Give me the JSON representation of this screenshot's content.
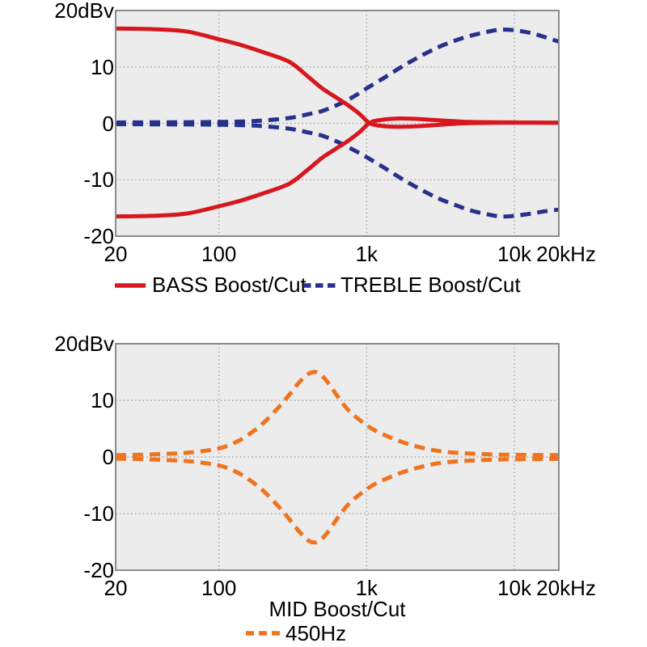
{
  "colors": {
    "red": "#d8161e",
    "navy": "#27308a",
    "orange": "#ee7420",
    "plot_bg": "#ececec",
    "grid": "#999999",
    "border": "#8c8c8c",
    "text": "#000000"
  },
  "chart_data": [
    {
      "type": "line",
      "title": "",
      "xscale": "log",
      "x_range": [
        20,
        20000
      ],
      "y_range": [
        -20,
        20
      ],
      "grid_x": [
        100,
        1000,
        10000
      ],
      "grid_y": [
        10,
        0,
        -10
      ],
      "x_ticks": [
        {
          "f": 20,
          "label": "20"
        },
        {
          "f": 100,
          "label": "100"
        },
        {
          "f": 1000,
          "label": "1k"
        },
        {
          "f": 10000,
          "label": "10k"
        },
        {
          "f": 20000,
          "label": "20kHz"
        }
      ],
      "y_ticks": [
        {
          "v": 20,
          "label": "20dBv"
        },
        {
          "v": 10,
          "label": "10"
        },
        {
          "v": 0,
          "label": "0"
        },
        {
          "v": -10,
          "label": "-10"
        },
        {
          "v": -20,
          "label": "-20"
        }
      ],
      "xlabel": "",
      "legend": [
        {
          "label": "BASS Boost/Cut",
          "color": "red",
          "style": "solid"
        },
        {
          "label": "TREBLE Boost/Cut",
          "color": "navy",
          "style": "dashed"
        }
      ],
      "series": [
        {
          "name": "TREBLE boost",
          "color": "navy",
          "style": "dashed",
          "points": [
            [
              20,
              0.15
            ],
            [
              60,
              0.2
            ],
            [
              100,
              0.25
            ],
            [
              150,
              0.35
            ],
            [
              200,
              0.5
            ],
            [
              300,
              0.95
            ],
            [
              400,
              1.6
            ],
            [
              500,
              2.2
            ],
            [
              650,
              3.4
            ],
            [
              800,
              4.6
            ],
            [
              1000,
              6.2
            ],
            [
              1300,
              8.0
            ],
            [
              1700,
              9.9
            ],
            [
              2200,
              11.6
            ],
            [
              3000,
              13.4
            ],
            [
              4000,
              14.7
            ],
            [
              5000,
              15.5
            ],
            [
              6500,
              16.2
            ],
            [
              8000,
              16.6
            ],
            [
              10000,
              16.5
            ],
            [
              13000,
              16.0
            ],
            [
              16000,
              15.3
            ],
            [
              20000,
              14.5
            ]
          ]
        },
        {
          "name": "TREBLE cut",
          "color": "navy",
          "style": "dashed",
          "points": [
            [
              20,
              -0.15
            ],
            [
              60,
              -0.2
            ],
            [
              100,
              -0.25
            ],
            [
              150,
              -0.35
            ],
            [
              200,
              -0.5
            ],
            [
              300,
              -0.95
            ],
            [
              400,
              -1.6
            ],
            [
              500,
              -2.2
            ],
            [
              650,
              -3.4
            ],
            [
              800,
              -4.6
            ],
            [
              1000,
              -6.0
            ],
            [
              1300,
              -7.8
            ],
            [
              1700,
              -9.7
            ],
            [
              2200,
              -11.4
            ],
            [
              3000,
              -13.2
            ],
            [
              4000,
              -14.5
            ],
            [
              5000,
              -15.4
            ],
            [
              6500,
              -16.1
            ],
            [
              8000,
              -16.5
            ],
            [
              10000,
              -16.4
            ],
            [
              13000,
              -16.0
            ],
            [
              16000,
              -15.6
            ],
            [
              20000,
              -15.3
            ]
          ]
        },
        {
          "name": "BASS boost",
          "color": "red",
          "style": "solid",
          "points": [
            [
              20,
              16.8
            ],
            [
              35,
              16.7
            ],
            [
              60,
              16.3
            ],
            [
              100,
              14.9
            ],
            [
              140,
              13.9
            ],
            [
              200,
              12.6
            ],
            [
              300,
              10.9
            ],
            [
              400,
              8.3
            ],
            [
              500,
              6.2
            ],
            [
              620,
              4.6
            ],
            [
              750,
              3.2
            ],
            [
              900,
              1.6
            ],
            [
              1050,
              0.0
            ],
            [
              1250,
              -0.45
            ],
            [
              1600,
              -0.6
            ],
            [
              2100,
              -0.55
            ],
            [
              2800,
              -0.35
            ],
            [
              3800,
              -0.1
            ],
            [
              5000,
              0.05
            ],
            [
              8000,
              0.1
            ],
            [
              13000,
              0.1
            ],
            [
              20000,
              0.1
            ]
          ]
        },
        {
          "name": "BASS cut",
          "color": "red",
          "style": "solid",
          "points": [
            [
              20,
              -16.5
            ],
            [
              35,
              -16.4
            ],
            [
              60,
              -16.0
            ],
            [
              100,
              -14.7
            ],
            [
              140,
              -13.7
            ],
            [
              200,
              -12.4
            ],
            [
              300,
              -10.7
            ],
            [
              400,
              -8.2
            ],
            [
              500,
              -6.1
            ],
            [
              620,
              -4.5
            ],
            [
              750,
              -3.1
            ],
            [
              900,
              -1.5
            ],
            [
              1050,
              0.1
            ],
            [
              1250,
              0.6
            ],
            [
              1600,
              0.85
            ],
            [
              2100,
              0.8
            ],
            [
              2800,
              0.6
            ],
            [
              3800,
              0.4
            ],
            [
              5000,
              0.25
            ],
            [
              8000,
              0.18
            ],
            [
              13000,
              0.15
            ],
            [
              20000,
              0.12
            ]
          ]
        }
      ]
    },
    {
      "type": "line",
      "title": "",
      "xscale": "log",
      "x_range": [
        20,
        20000
      ],
      "y_range": [
        -20,
        20
      ],
      "grid_x": [
        100,
        1000,
        10000
      ],
      "grid_y": [
        10,
        0,
        -10
      ],
      "x_ticks": [
        {
          "f": 20,
          "label": "20"
        },
        {
          "f": 100,
          "label": "100"
        },
        {
          "f": 1000,
          "label": "1k"
        },
        {
          "f": 10000,
          "label": "10k"
        },
        {
          "f": 20000,
          "label": "20kHz"
        }
      ],
      "y_ticks": [
        {
          "v": 20,
          "label": "20dBv"
        },
        {
          "v": 10,
          "label": "10"
        },
        {
          "v": 0,
          "label": "0"
        },
        {
          "v": -10,
          "label": "-10"
        },
        {
          "v": -20,
          "label": "-20"
        }
      ],
      "xlabel": "MID Boost/Cut",
      "legend": [
        {
          "label": "450Hz",
          "color": "orange",
          "style": "dashed"
        }
      ],
      "series": [
        {
          "name": "MID cut",
          "color": "orange",
          "style": "dashed",
          "points": [
            [
              20,
              -0.3
            ],
            [
              30,
              -0.4
            ],
            [
              45,
              -0.55
            ],
            [
              65,
              -0.8
            ],
            [
              100,
              -1.5
            ],
            [
              130,
              -2.6
            ],
            [
              160,
              -4.0
            ],
            [
              200,
              -6.0
            ],
            [
              250,
              -8.6
            ],
            [
              300,
              -11.0
            ],
            [
              350,
              -13.2
            ],
            [
              400,
              -14.7
            ],
            [
              450,
              -15.1
            ],
            [
              500,
              -14.4
            ],
            [
              560,
              -12.9
            ],
            [
              640,
              -10.7
            ],
            [
              750,
              -8.4
            ],
            [
              900,
              -6.6
            ],
            [
              1100,
              -5.0
            ],
            [
              1400,
              -3.7
            ],
            [
              1800,
              -2.6
            ],
            [
              2300,
              -1.8
            ],
            [
              3000,
              -1.15
            ],
            [
              4000,
              -0.8
            ],
            [
              5500,
              -0.6
            ],
            [
              8000,
              -0.45
            ],
            [
              12000,
              -0.38
            ],
            [
              20000,
              -0.34
            ]
          ]
        },
        {
          "name": "MID boost",
          "color": "orange",
          "style": "dashed",
          "points": [
            [
              20,
              0.3
            ],
            [
              30,
              0.4
            ],
            [
              45,
              0.55
            ],
            [
              65,
              0.8
            ],
            [
              100,
              1.5
            ],
            [
              130,
              2.6
            ],
            [
              160,
              4.0
            ],
            [
              200,
              6.0
            ],
            [
              250,
              8.6
            ],
            [
              300,
              11.0
            ],
            [
              350,
              13.2
            ],
            [
              400,
              14.6
            ],
            [
              450,
              15.0
            ],
            [
              500,
              14.3
            ],
            [
              560,
              12.8
            ],
            [
              640,
              10.6
            ],
            [
              750,
              8.3
            ],
            [
              900,
              6.5
            ],
            [
              1100,
              4.9
            ],
            [
              1400,
              3.6
            ],
            [
              1800,
              2.5
            ],
            [
              2300,
              1.7
            ],
            [
              3000,
              1.1
            ],
            [
              4000,
              0.75
            ],
            [
              5500,
              0.55
            ],
            [
              8000,
              0.42
            ],
            [
              12000,
              0.36
            ],
            [
              20000,
              0.32
            ]
          ]
        }
      ]
    }
  ]
}
